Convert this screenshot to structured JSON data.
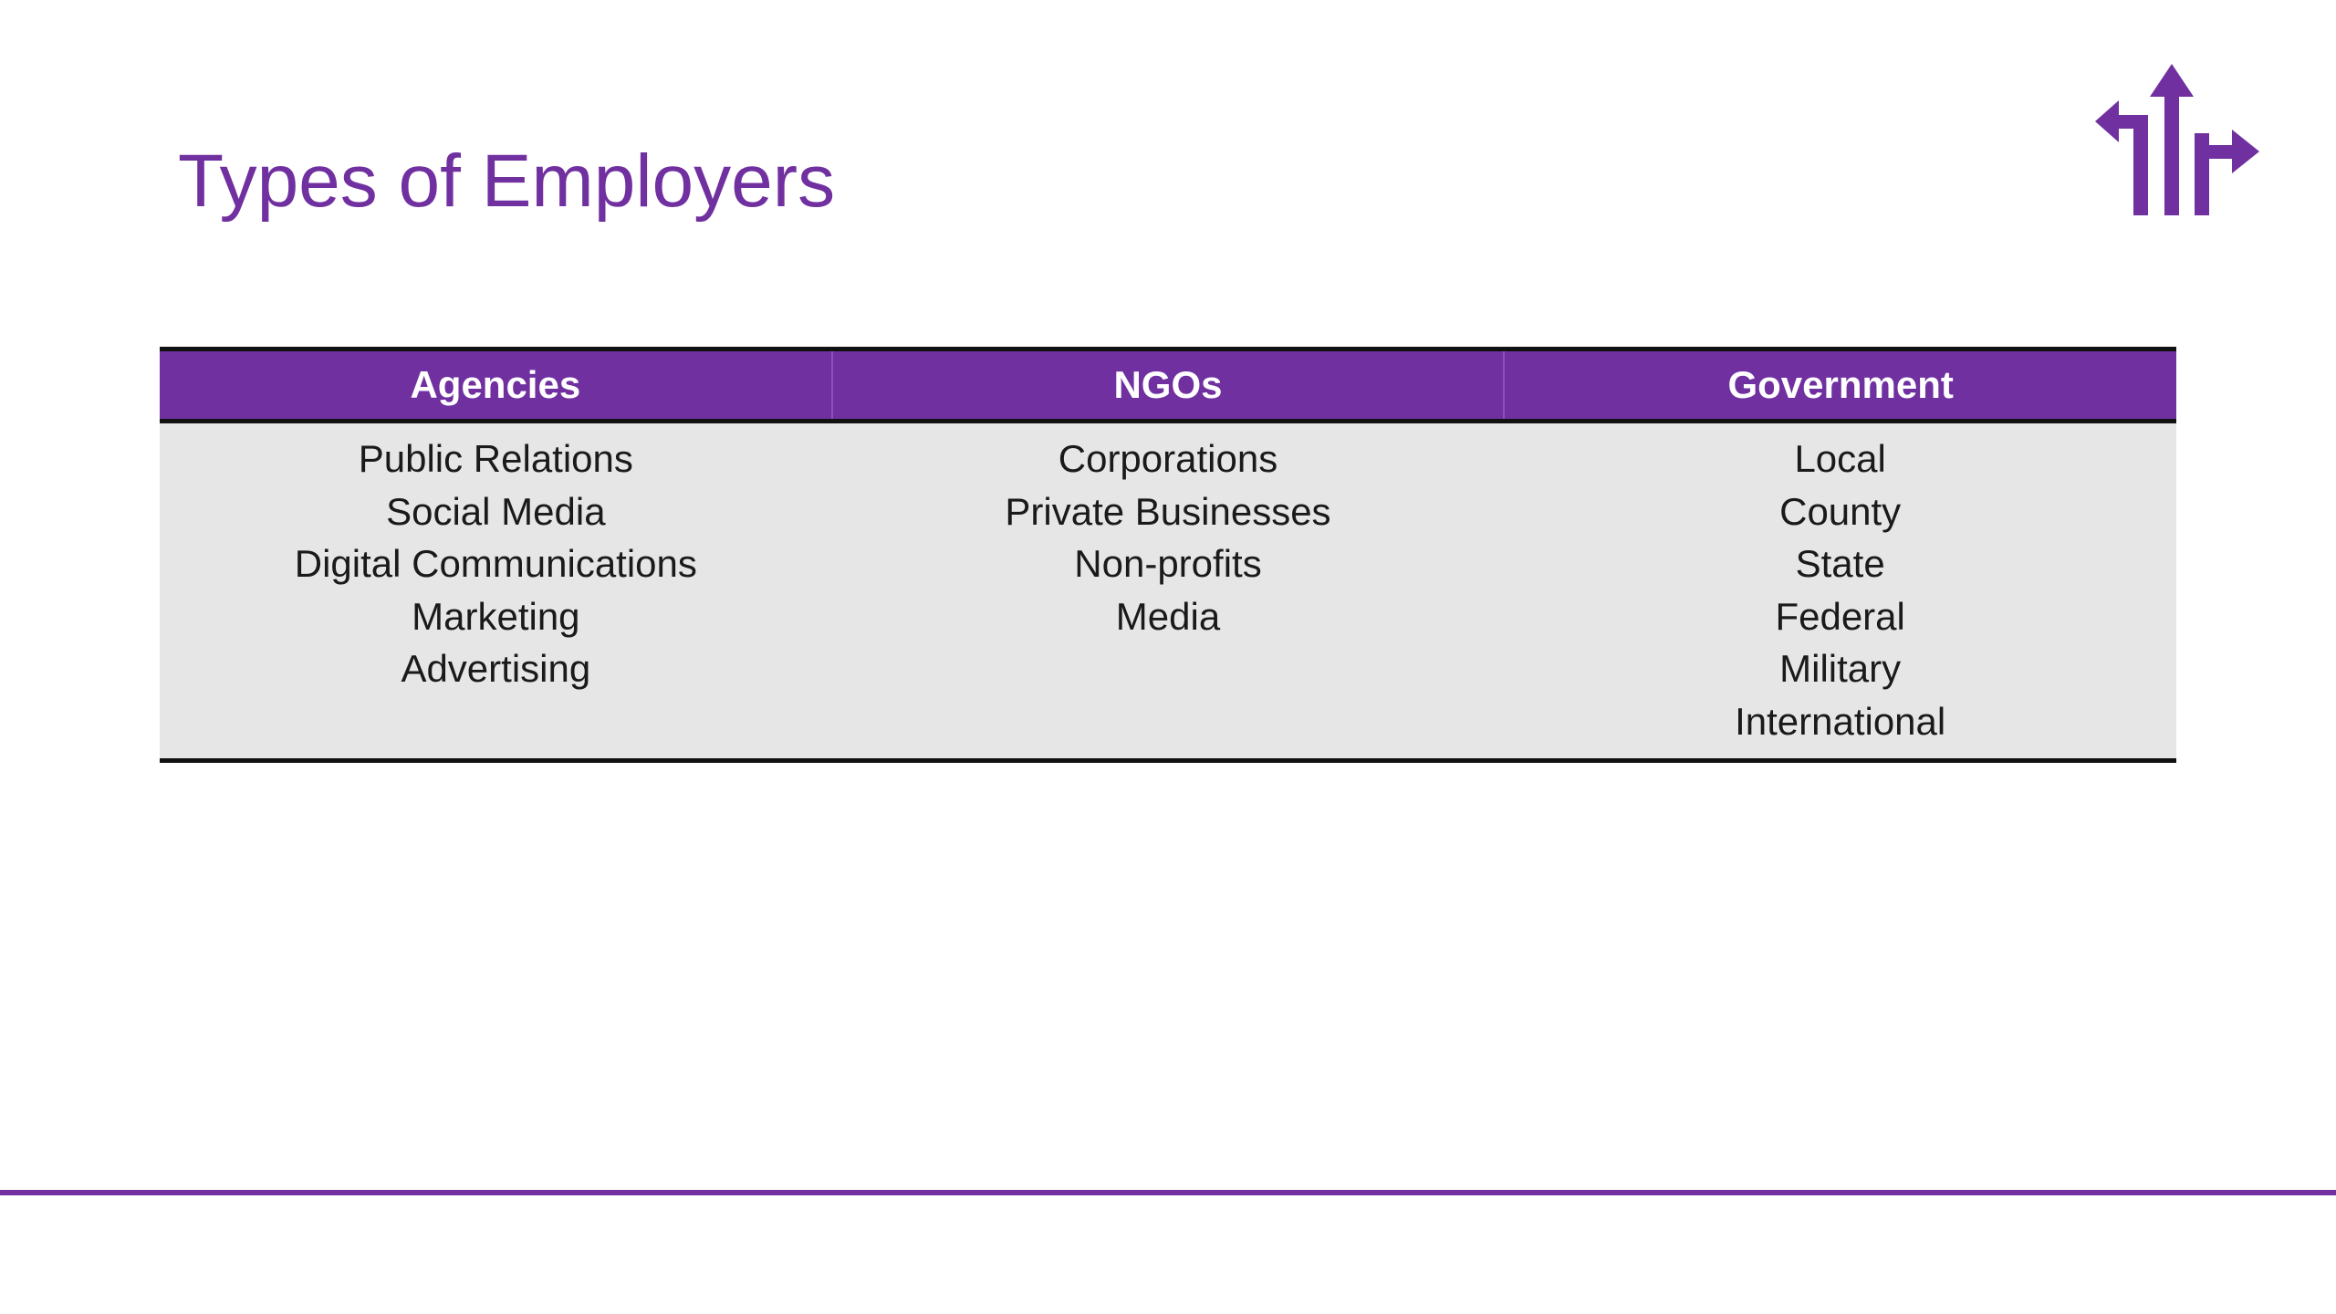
{
  "slide": {
    "title": "Types of Employers"
  },
  "logo": {
    "icon": "directional-arrows-icon",
    "color": "#7030a0"
  },
  "table": {
    "headers": [
      "Agencies",
      "NGOs",
      "Government"
    ],
    "columns": [
      [
        "Public Relations",
        "Social Media",
        "Digital Communications",
        "Marketing",
        "Advertising"
      ],
      [
        "Corporations",
        "Private Businesses",
        "Non-profits",
        "Media"
      ],
      [
        "Local",
        "County",
        "State",
        "Federal",
        "Military",
        "International"
      ]
    ]
  },
  "theme": {
    "accent": "#7030a0",
    "body_fill": "#e7e6e6"
  }
}
